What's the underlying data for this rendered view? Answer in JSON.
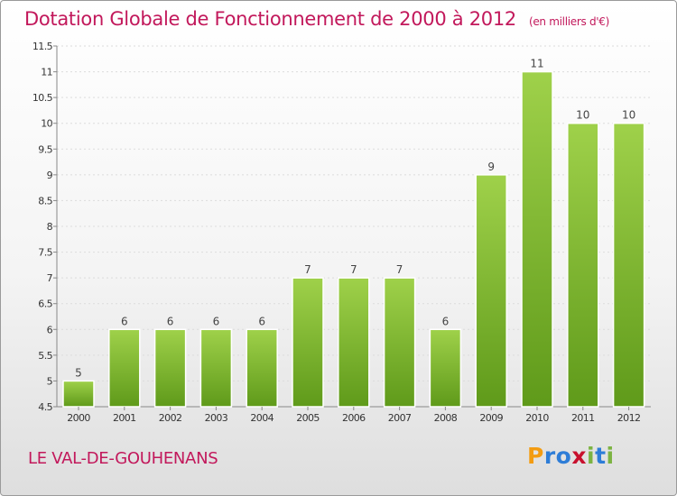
{
  "header": {
    "title": "Dotation Globale de Fonctionnement de 2000 à 2012",
    "unit": "(en milliers d'€)"
  },
  "footer": {
    "commune": "LE VAL-DE-GOUHENANS",
    "logo_letters": [
      "P",
      "r",
      "o",
      "x",
      "i",
      "t",
      "i"
    ],
    "logo_colors": [
      "#f39c12",
      "#2e7dd7",
      "#2e7dd7",
      "#c8102e",
      "#7cb342",
      "#2e7dd7",
      "#7cb342"
    ]
  },
  "colors": {
    "bar_light": "#9fd14a",
    "bar_dark": "#5f9a1a",
    "axis": "#888888",
    "grid": "#dcdcdc"
  },
  "chart_data": {
    "type": "bar",
    "categories": [
      "2000",
      "2001",
      "2002",
      "2003",
      "2004",
      "2005",
      "2006",
      "2007",
      "2008",
      "2009",
      "2010",
      "2011",
      "2012"
    ],
    "values": [
      5,
      6,
      6,
      6,
      6,
      7,
      7,
      7,
      6,
      9,
      11,
      10,
      10
    ],
    "value_labels": [
      "5",
      "6",
      "6",
      "6",
      "6",
      "7",
      "7",
      "7",
      "6",
      "9",
      "11",
      "10",
      "10"
    ],
    "yticks": [
      "4.5",
      "5",
      "5.5",
      "6",
      "6.5",
      "7",
      "7.5",
      "8",
      "8.5",
      "9",
      "9.5",
      "10",
      "10.5",
      "11",
      "11.5"
    ],
    "ylim": [
      4.5,
      11.5
    ],
    "title": "Dotation Globale de Fonctionnement de 2000 à 2012",
    "xlabel": "",
    "ylabel": "",
    "grid": true
  }
}
